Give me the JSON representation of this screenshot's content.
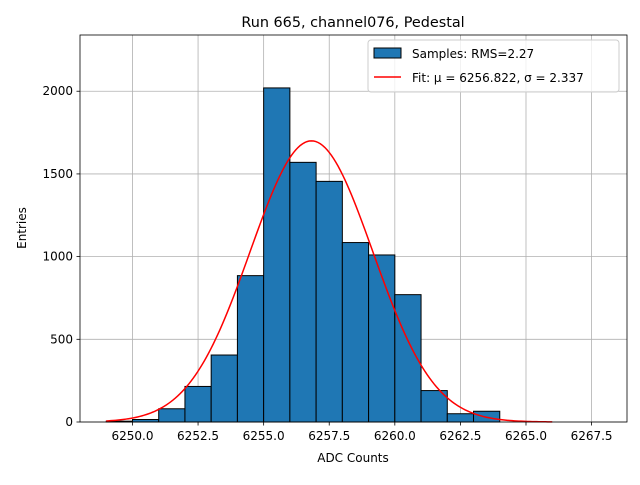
{
  "chart_data": {
    "type": "bar",
    "title": "Run 665, channel076, Pedestal",
    "xlabel": "ADC Counts",
    "ylabel": "Entries",
    "xlim": [
      6248.0,
      6268.85
    ],
    "ylim": [
      0,
      2340
    ],
    "grid": true,
    "xticks": [
      6250.0,
      6252.5,
      6255.0,
      6257.5,
      6260.0,
      6262.5,
      6265.0,
      6267.5
    ],
    "xtick_labels": [
      "6250.0",
      "6252.5",
      "6255.0",
      "6257.5",
      "6260.0",
      "6262.5",
      "6265.0",
      "6267.5"
    ],
    "yticks": [
      0,
      500,
      1000,
      1500,
      2000
    ],
    "ytick_labels": [
      "0",
      "500",
      "1000",
      "1500",
      "2000"
    ],
    "histogram": {
      "name": "Samples: RMS=2.27",
      "color": "#1f77b4",
      "edge_color": "#000000",
      "bin_edges": [
        6249,
        6250,
        6251,
        6252,
        6253,
        6254,
        6255,
        6256,
        6257,
        6258,
        6259,
        6260,
        6261,
        6262,
        6263,
        6264
      ],
      "values": [
        5,
        15,
        80,
        215,
        405,
        885,
        2020,
        1570,
        1455,
        1085,
        1010,
        770,
        190,
        50,
        65
      ]
    },
    "fit": {
      "name": "Fit: μ = 6256.822, σ = 2.337",
      "mu": 6256.822,
      "sigma": 2.337,
      "peak": 1700,
      "x_range": [
        6249,
        6266
      ],
      "color": "#ff0000"
    },
    "legend": {
      "placement": "top-right",
      "entries": [
        "Samples: RMS=2.27",
        "Fit: μ = 6256.822, σ = 2.337"
      ]
    }
  }
}
